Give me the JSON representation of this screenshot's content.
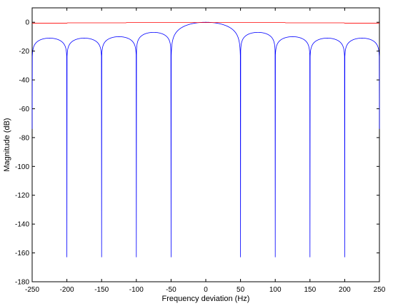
{
  "chart_data": {
    "type": "line",
    "title": "",
    "xlabel": "Frequency deviation (Hz)",
    "ylabel": "Magnitude (dB)",
    "xlim": [
      -250,
      250
    ],
    "ylim": [
      -180,
      10
    ],
    "xticks": [
      -250,
      -200,
      -150,
      -100,
      -50,
      0,
      50,
      100,
      150,
      200,
      250
    ],
    "yticks": [
      0,
      -20,
      -40,
      -60,
      -80,
      -100,
      -120,
      -140,
      -160,
      -180
    ],
    "grid": false,
    "legend": "none",
    "series": [
      {
        "color": "#0000ff",
        "style": "sinc-like magnitude response with nulls every 50 Hz",
        "main_lobe": {
          "x": [
            -50,
            50
          ],
          "peak": 0
        },
        "sidelobe_peaks": [
          {
            "x": -225,
            "y": -11
          },
          {
            "x": -175,
            "y": -11
          },
          {
            "x": -125,
            "y": -10
          },
          {
            "x": -75,
            "y": -7
          },
          {
            "x": 75,
            "y": -7
          },
          {
            "x": 125,
            "y": -10
          },
          {
            "x": 175,
            "y": -11
          },
          {
            "x": 225,
            "y": -11
          }
        ],
        "nulls": [
          {
            "x": -200,
            "y": -163
          },
          {
            "x": -150,
            "y": -163
          },
          {
            "x": -100,
            "y": -163
          },
          {
            "x": -50,
            "y": -163
          },
          {
            "x": 50,
            "y": -163
          },
          {
            "x": 100,
            "y": -163
          },
          {
            "x": 150,
            "y": -163
          },
          {
            "x": 200,
            "y": -163
          }
        ]
      },
      {
        "color": "#ff0000",
        "style": "near-flat reference line",
        "x": [
          -250,
          -200,
          -199,
          -115,
          -114,
          -1,
          1,
          114,
          115,
          199,
          200,
          250
        ],
        "y": [
          -0.6,
          -0.6,
          -0.4,
          -0.4,
          -0.2,
          -0.2,
          -0.2,
          -0.2,
          -0.4,
          -0.4,
          -0.6,
          -0.6
        ]
      }
    ]
  }
}
